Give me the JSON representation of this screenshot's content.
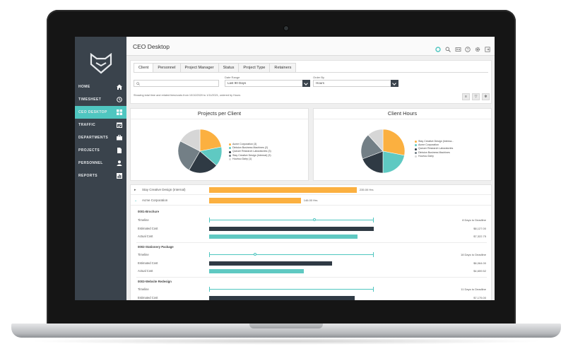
{
  "app": {
    "page_title": "CEO Desktop"
  },
  "sidebar": {
    "items": [
      {
        "label": "HOME",
        "icon": "home-icon"
      },
      {
        "label": "TIMESHEET",
        "icon": "clock-icon"
      },
      {
        "label": "CEO DESKTOP",
        "icon": "dashboard-icon"
      },
      {
        "label": "TRAFFIC",
        "icon": "calendar-icon"
      },
      {
        "label": "DEPARTMENTS",
        "icon": "briefcase-icon"
      },
      {
        "label": "PROJECTS",
        "icon": "document-icon"
      },
      {
        "label": "PERSONNEL",
        "icon": "person-icon"
      },
      {
        "label": "REPORTS",
        "icon": "chart-icon"
      }
    ],
    "active": "CEO DESKTOP"
  },
  "tabs": [
    "Client",
    "Personnel",
    "Project Manager",
    "Status",
    "Project Type",
    "Retainers"
  ],
  "filters": {
    "search_placeholder": "",
    "date_range_label": "Date Range",
    "date_range_value": "Last 90 Days",
    "order_by_label": "Order By",
    "order_by_value": "Hours",
    "info_text": "Showing total time and related fees/costs from 10/10/2020 to 1/11/2021, ordered by Hours"
  },
  "projects_per_client": {
    "title": "Projects per Client",
    "legend": [
      {
        "label": "Acme Corporation (3)",
        "color": "#fbb040"
      },
      {
        "label": "Dinision Business Machines (2)",
        "color": "#5fc9c2"
      },
      {
        "label": "Queuer Research Laboratories (3)",
        "color": "#2f3a44"
      },
      {
        "label": "Stay Creative Design (Internal) (3)",
        "color": "#737f86"
      },
      {
        "label": "Huuhuu Dairy (1)",
        "color": "#d6d6d6"
      }
    ]
  },
  "client_hours": {
    "title": "Client Hours",
    "legend": [
      {
        "label": "Stay Creative Design (Interna...",
        "color": "#fbb040"
      },
      {
        "label": "Acme Corporation",
        "color": "#5fc9c2"
      },
      {
        "label": "Queuer Research Laboratories",
        "color": "#2f3a44"
      },
      {
        "label": "Dinision Business Machines",
        "color": "#737f86"
      },
      {
        "label": "Huuhuu Dairy",
        "color": "#d6d6d6"
      }
    ]
  },
  "clients": [
    {
      "name": "Stay Creative Design (Internal)",
      "hours": 235,
      "hours_label": "235.00 Hrs",
      "expanded": false
    },
    {
      "name": "Acme Corporation",
      "hours": 146,
      "hours_label": "146.00 Hrs",
      "expanded": true
    }
  ],
  "projects": [
    {
      "name": "0001-Brochure",
      "timeline_label": "Timeline",
      "timeline_value": "8 Days to Deadline",
      "timeline_progress": 0.64,
      "estimated_label": "Estimated Cost",
      "estimated_value": "$8,127.00",
      "estimated": 8127,
      "actual_label": "Actual Cost",
      "actual_value": "$7,322.75",
      "actual": 7322.75
    },
    {
      "name": "0002-Stationery Package",
      "timeline_label": "Timeline",
      "timeline_value": "18 Days to Deadline",
      "timeline_progress": 0.28,
      "estimated_label": "Estimated Cost",
      "estimated_value": "$6,064.00",
      "estimated": 6064,
      "actual_label": "Actual Cost",
      "actual_value": "$4,659.52",
      "actual": 4659.52
    },
    {
      "name": "0003-Website Redesign",
      "timeline_label": "Timeline",
      "timeline_value": "11 Days to Deadline",
      "estimated_label": "Estimated Cost",
      "estimated_value": "$7,175.00",
      "estimated": 7175
    }
  ]
}
